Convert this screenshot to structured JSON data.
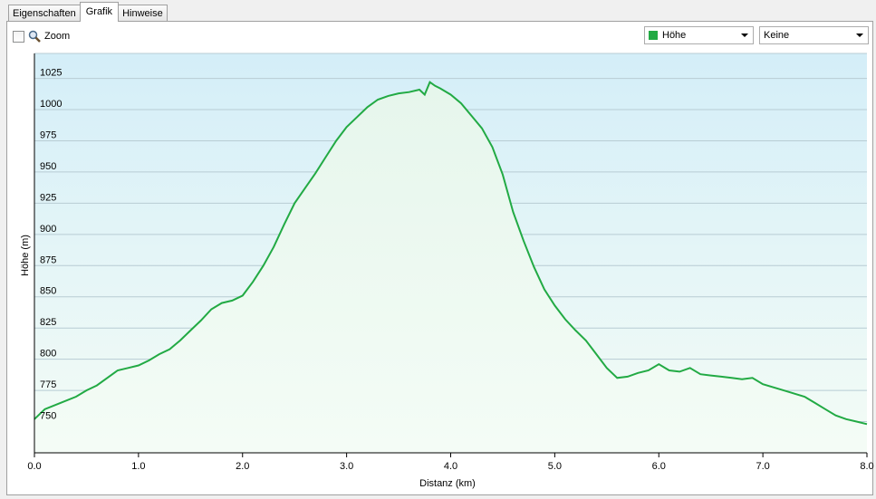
{
  "tabs": [
    {
      "label": "Eigenschaften",
      "active": false
    },
    {
      "label": "Grafik",
      "active": true
    },
    {
      "label": "Hinweise",
      "active": false
    }
  ],
  "toolbar": {
    "zoom_label": "Zoom",
    "zoom_checked": false,
    "series_select": {
      "value": "Höhe",
      "color": "#22aa44"
    },
    "overlay_select": {
      "value": "Keine"
    }
  },
  "colors": {
    "line": "#22aa44",
    "plot_bg_top": "#d4eef8",
    "plot_bg_bottom": "#f4fcf6",
    "grid": "#b8ccd4"
  },
  "chart_data": {
    "type": "area",
    "xlabel": "Distanz  (km)",
    "ylabel": "Höhe (m)",
    "xlim": [
      0,
      8
    ],
    "ylim": [
      725,
      1045
    ],
    "xticks": [
      "0.0",
      "1.0",
      "2.0",
      "3.0",
      "4.0",
      "5.0",
      "6.0",
      "7.0",
      "8.0"
    ],
    "yticks": [
      "750",
      "775",
      "800",
      "825",
      "850",
      "875",
      "900",
      "925",
      "950",
      "975",
      "1000",
      "1025"
    ],
    "grid": true,
    "series": [
      {
        "x": [
          0.0,
          0.1,
          0.25,
          0.4,
          0.5,
          0.6,
          0.7,
          0.8,
          0.9,
          1.0,
          1.1,
          1.2,
          1.3,
          1.4,
          1.5,
          1.6,
          1.7,
          1.8,
          1.9,
          2.0,
          2.1,
          2.2,
          2.3,
          2.4,
          2.5,
          2.6,
          2.7,
          2.8,
          2.9,
          3.0,
          3.1,
          3.2,
          3.3,
          3.4,
          3.5,
          3.6,
          3.7,
          3.75,
          3.8,
          3.85,
          3.9,
          4.0,
          4.1,
          4.2,
          4.3,
          4.4,
          4.5,
          4.6,
          4.7,
          4.8,
          4.9,
          5.0,
          5.1,
          5.2,
          5.3,
          5.4,
          5.5,
          5.6,
          5.7,
          5.8,
          5.9,
          6.0,
          6.1,
          6.2,
          6.3,
          6.4,
          6.5,
          6.6,
          6.7,
          6.8,
          6.9,
          7.0,
          7.2,
          7.4,
          7.5,
          7.6,
          7.7,
          7.8,
          7.9,
          8.0
        ],
        "y": [
          752,
          760,
          765,
          770,
          775,
          779,
          785,
          791,
          793,
          795,
          799,
          804,
          808,
          815,
          823,
          831,
          840,
          845,
          847,
          851,
          862,
          875,
          890,
          908,
          925,
          937,
          949,
          962,
          975,
          986,
          994,
          1002,
          1008,
          1011,
          1013,
          1014,
          1016,
          1012,
          1022,
          1019,
          1017,
          1012,
          1005,
          995,
          985,
          970,
          948,
          918,
          895,
          874,
          856,
          843,
          832,
          823,
          815,
          804,
          793,
          785,
          786,
          789,
          791,
          796,
          791,
          790,
          793,
          788,
          787,
          786,
          785,
          784,
          785,
          780,
          775,
          770,
          765,
          760,
          755,
          752,
          750,
          748
        ]
      }
    ]
  }
}
